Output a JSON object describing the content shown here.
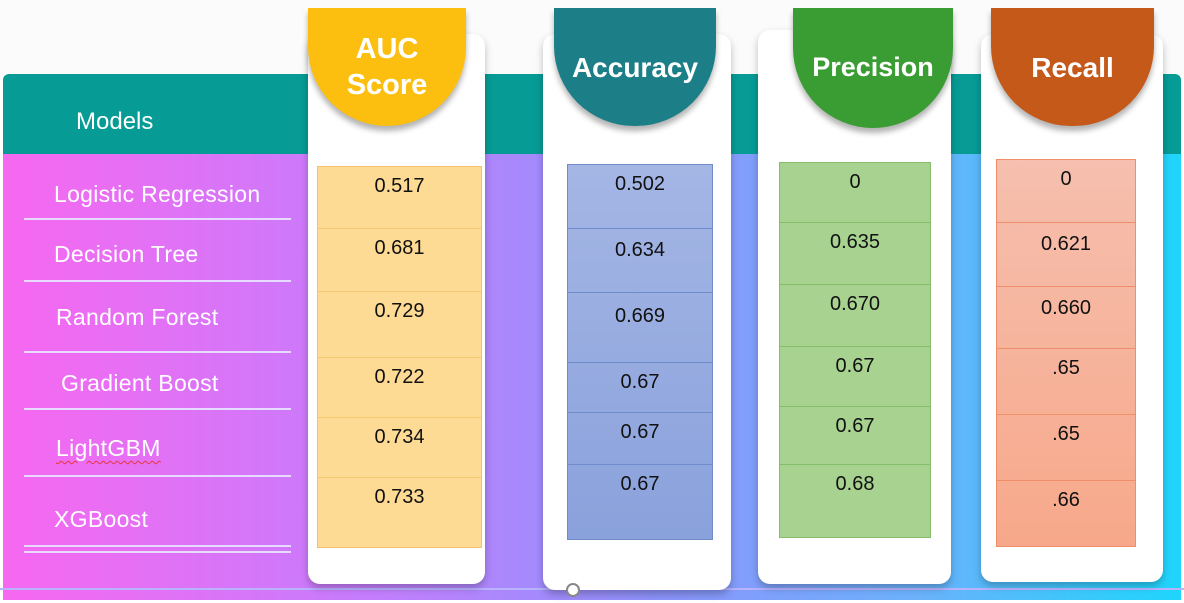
{
  "models_header": "Models",
  "models": [
    "Logistic Regression",
    "Decision Tree",
    "Random Forest",
    "Gradient Boost",
    "LightGBM",
    "XGBoost"
  ],
  "metrics": [
    {
      "title_line1": "AUC",
      "title_line2": "Score",
      "values": [
        "0.517",
        "0.681",
        "0.729",
        "0.722",
        "0.734",
        "0.733"
      ],
      "color": "#fcbf10"
    },
    {
      "title_line1": "Accuracy",
      "title_line2": "",
      "values": [
        "0.502",
        "0.634",
        "0.669",
        "0.67",
        "0.67",
        "0.67"
      ],
      "color": "#1c7f87"
    },
    {
      "title_line1": "Precision",
      "title_line2": "",
      "values": [
        "0",
        "0.635",
        "0.670",
        "0.67",
        "0.67",
        "0.68"
      ],
      "color": "#3a9d33"
    },
    {
      "title_line1": "Recall",
      "title_line2": "",
      "values": [
        "0",
        "0.621",
        "0.660",
        ".65",
        ".65",
        ".66"
      ],
      "color": "#c4591a"
    }
  ],
  "colors": {
    "header_band": "#079b95",
    "auc_cells": "#fedb94",
    "accuracy_cells": "#8ea4dd",
    "precision_cells": "#a8d290",
    "recall_cells": "#f7b199"
  }
}
